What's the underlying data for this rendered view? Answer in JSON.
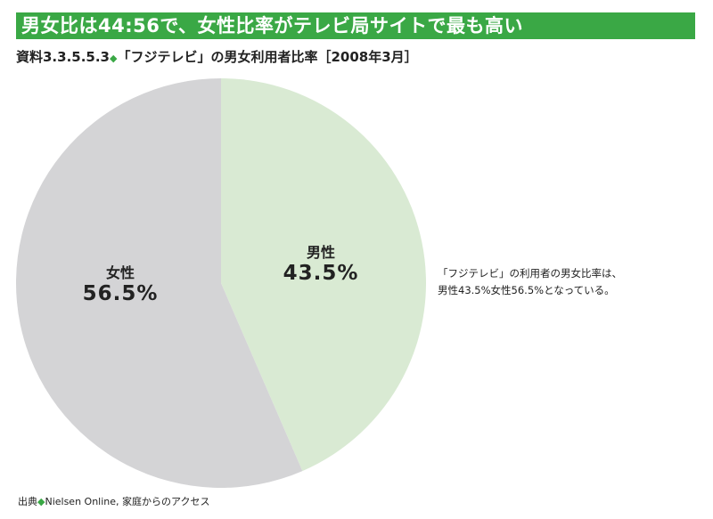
{
  "header": {
    "banner": "男女比は44:56で、女性比率がテレビ局サイトで最も高い",
    "subtitle_prefix": "資料3.3.5.5.3",
    "subtitle_text": "「フジテレビ」の男女利用者比率［2008年3月］"
  },
  "note": {
    "line1": "「フジテレビ」の利用者の男女比率は、",
    "line2": "男性43.5%女性56.5%となっている。"
  },
  "source": {
    "prefix": "出典",
    "text": "Nielsen Online, 家庭からのアクセス"
  },
  "chart_data": {
    "type": "pie",
    "title": "「フジテレビ」の男女利用者比率［2008年3月］",
    "slices": [
      {
        "name": "男性",
        "value": 43.5,
        "label": "43.5%",
        "color": "#d9ead3"
      },
      {
        "name": "女性",
        "value": 56.5,
        "label": "56.5%",
        "color": "#d4d4d6"
      }
    ],
    "start": "top",
    "direction": "clockwise"
  }
}
